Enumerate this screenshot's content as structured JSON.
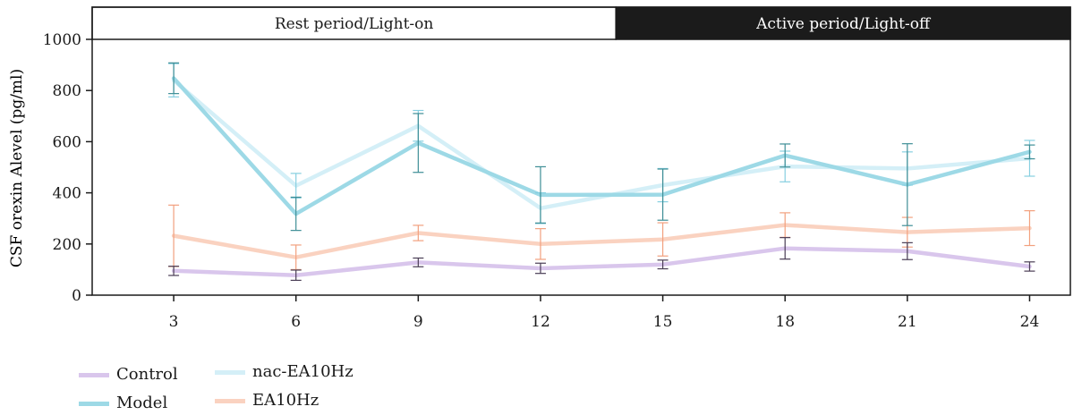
{
  "chart_data": {
    "type": "line",
    "ylabel": "CSF orexin Alevel (pg/ml)",
    "xlabel": "",
    "ylim": [
      0,
      1000
    ],
    "yticks": [
      0,
      200,
      400,
      600,
      800,
      1000
    ],
    "x": [
      3,
      6,
      9,
      12,
      15,
      18,
      21,
      24
    ],
    "x_domain": [
      1,
      25
    ],
    "bands": [
      {
        "label": "Rest period/Light-on",
        "from": 1,
        "to": 13.85,
        "fill": "#ffffff",
        "text_color": "#1a1a1a"
      },
      {
        "label": "Active period/Light-off",
        "from": 13.85,
        "to": 25,
        "fill": "#1b1b1b",
        "text_color": "#ffffff"
      }
    ],
    "grid": false,
    "legend_position": "bottom-left",
    "series": [
      {
        "name": "Control",
        "color": "#d9c6ec",
        "error_color": "#4a3d55",
        "values": [
          95,
          78,
          128,
          105,
          120,
          183,
          172,
          112
        ],
        "errors": [
          18,
          20,
          17,
          20,
          17,
          42,
          33,
          18
        ]
      },
      {
        "name": "Model",
        "color": "#9dd9e6",
        "error_color": "#3e8e96",
        "values": [
          848,
          318,
          595,
          392,
          393,
          546,
          432,
          560
        ],
        "errors": [
          60,
          65,
          115,
          110,
          100,
          45,
          160,
          27
        ]
      },
      {
        "name": "nac-EA10Hz",
        "color": "#d4eff7",
        "error_color": "#86cfe0",
        "values": [
          840,
          428,
          662,
          340,
          430,
          503,
          495,
          535
        ],
        "errors": [
          65,
          48,
          60,
          60,
          65,
          60,
          65,
          70
        ]
      },
      {
        "name": "EA10Hz",
        "color": "#fad2c0",
        "error_color": "#f2a07e",
        "values": [
          232,
          148,
          243,
          200,
          218,
          274,
          246,
          262
        ],
        "errors": [
          120,
          48,
          30,
          60,
          65,
          48,
          58,
          68
        ]
      }
    ]
  }
}
